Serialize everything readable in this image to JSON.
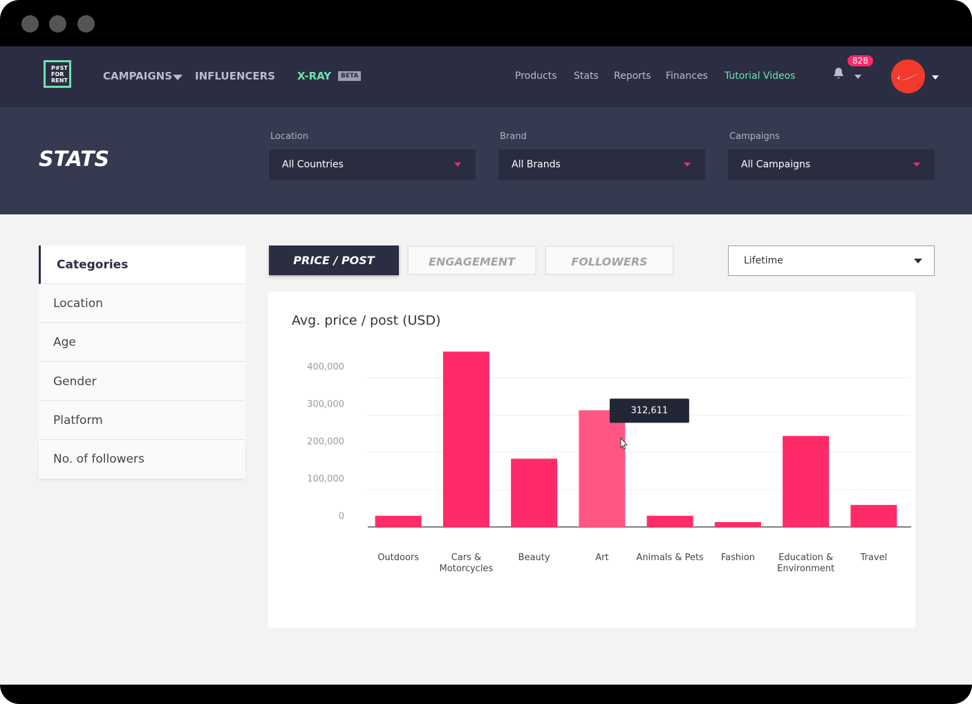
{
  "window": {
    "logo": [
      "P#ST",
      "FOR",
      "RENT"
    ]
  },
  "nav": {
    "left": [
      "CAMPAIGNS",
      "INFLUENCERS"
    ],
    "xray": "X-RAY",
    "beta": "BETA",
    "right": [
      "Products",
      "Stats",
      "Reports",
      "Finances"
    ],
    "tutorial": "Tutorial Videos",
    "notifications": "828"
  },
  "header": {
    "title": "STATS",
    "filters": [
      {
        "label": "Location",
        "value": "All Countries"
      },
      {
        "label": "Brand",
        "value": "All Brands"
      },
      {
        "label": "Campaigns",
        "value": "All Campaigns"
      }
    ]
  },
  "sidebar": {
    "active": "Categories",
    "items": [
      "Location",
      "Age",
      "Gender",
      "Platform",
      "No. of followers"
    ]
  },
  "tabs": {
    "active": "PRICE / POST",
    "others": [
      "ENGAGEMENT",
      "FOLLOWERS"
    ]
  },
  "period": "Lifetime",
  "chart_data": {
    "type": "bar",
    "title": "Avg. price / post (USD)",
    "categories": [
      "Outdoors",
      "Cars & Motorcycles",
      "Beauty",
      "Art",
      "Animals & Pets",
      "Fashion",
      "Education & Environment",
      "Travel"
    ],
    "values": [
      30000,
      470000,
      183000,
      312611,
      30000,
      13000,
      244000,
      59000
    ],
    "value_labels": [
      null,
      null,
      null,
      "312,611",
      null,
      null,
      null,
      null
    ],
    "color": "#ff2a68",
    "hover_color": "#ff5684",
    "ylim": [
      0,
      480000
    ],
    "yticks": [
      0,
      {
        "value": 100000,
        "label": "100,000"
      },
      {
        "value": 200000,
        "label": "200,000"
      },
      {
        "value": 300000,
        "label": "300,000"
      },
      {
        "value": 400000,
        "label": "400,000"
      }
    ],
    "grid": true
  }
}
